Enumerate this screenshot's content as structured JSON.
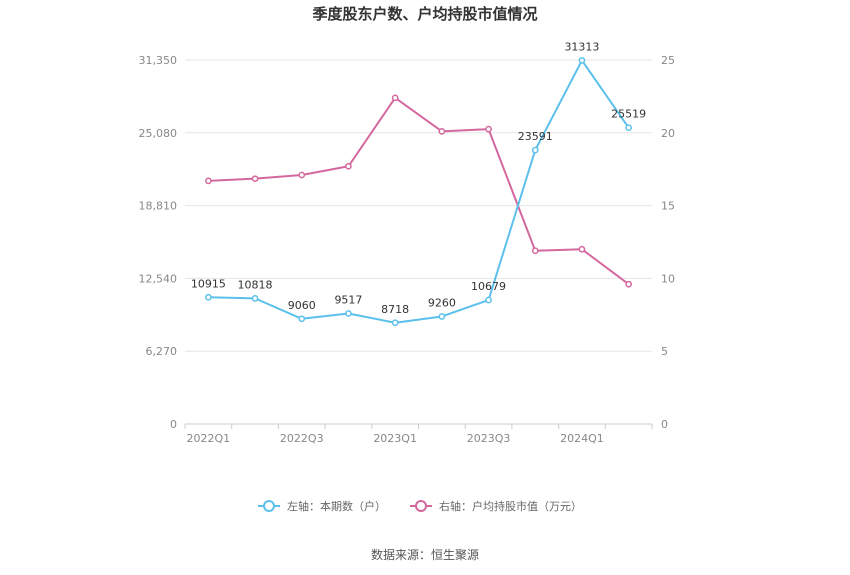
{
  "title": "季度股东户数、户均持股市值情况",
  "source": "数据来源：恒生聚源",
  "chart_data": {
    "type": "line",
    "x": [
      "2022Q1",
      "2022Q2",
      "2022Q3",
      "2022Q4",
      "2023Q1",
      "2023Q2",
      "2023Q3",
      "2023Q4",
      "2024Q1",
      "2024Q2"
    ],
    "x_tick_labels": [
      "2022Q1",
      "2022Q3",
      "2023Q1",
      "2023Q3",
      "2024Q1"
    ],
    "y_left": {
      "ticks": [
        "0",
        "6,270",
        "12,540",
        "18,810",
        "25,080",
        "31,350"
      ],
      "range": [
        0,
        31350
      ]
    },
    "y_right": {
      "ticks": [
        "0",
        "5",
        "10",
        "15",
        "20",
        "25"
      ],
      "range": [
        0,
        25
      ]
    },
    "grid": true,
    "legend_position": "bottom",
    "series": [
      {
        "name": "左轴：本期数（户）",
        "axis": "left",
        "color": "#5bc0eb",
        "values": [
          10915,
          10818,
          9060,
          9517,
          8718,
          9260,
          10679,
          23591,
          31313,
          25519
        ],
        "labels": [
          "10915",
          "10818",
          "9060",
          "9517",
          "8718",
          "9260",
          "10679",
          "23591",
          "31313",
          "25519"
        ]
      },
      {
        "name": "右轴：户均持股市值（万元）",
        "axis": "right",
        "color": "#d4689e",
        "values": [
          16.7,
          16.85,
          17.1,
          17.7,
          22.4,
          20.1,
          20.25,
          11.9,
          12.0,
          9.6
        ]
      }
    ]
  }
}
